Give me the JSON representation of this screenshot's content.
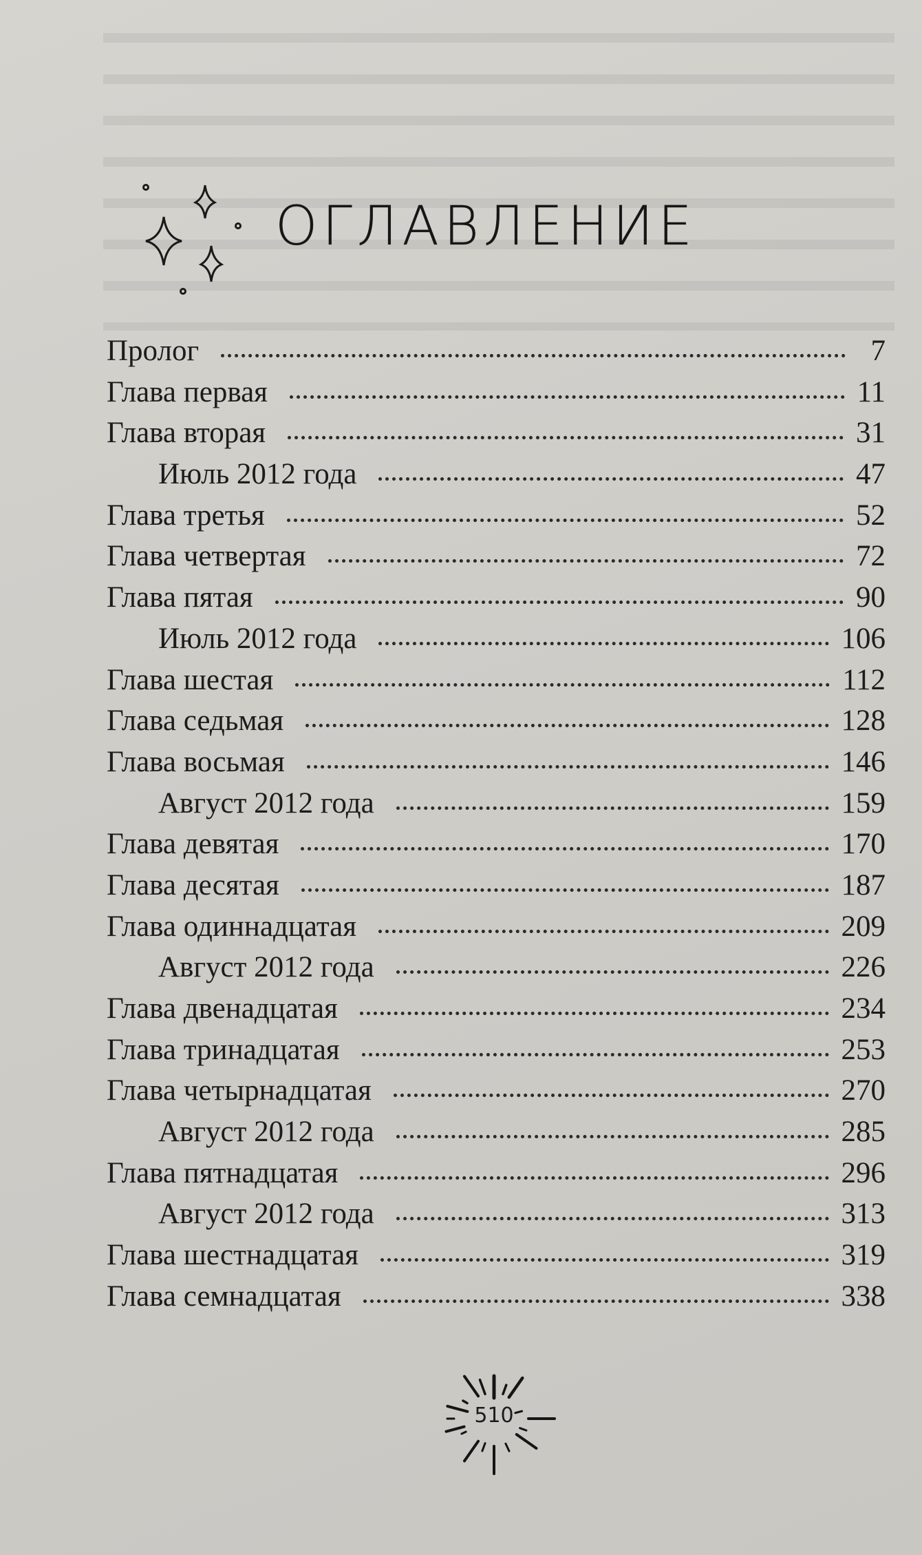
{
  "page_title": "ОГЛАВЛЕНИЕ",
  "decoration_icon": "sparkles-icon",
  "entries": [
    {
      "label": "Пролог",
      "page": "7",
      "sub": false
    },
    {
      "label": "Глава первая",
      "page": "11",
      "sub": false
    },
    {
      "label": "Глава вторая",
      "page": "31",
      "sub": false
    },
    {
      "label": "Июль 2012 года",
      "page": "47",
      "sub": true
    },
    {
      "label": "Глава третья",
      "page": "52",
      "sub": false
    },
    {
      "label": "Глава четвертая",
      "page": "72",
      "sub": false
    },
    {
      "label": "Глава пятая",
      "page": "90",
      "sub": false
    },
    {
      "label": "Июль 2012 года",
      "page": "106",
      "sub": true
    },
    {
      "label": "Глава шестая",
      "page": "112",
      "sub": false
    },
    {
      "label": "Глава седьмая",
      "page": "128",
      "sub": false
    },
    {
      "label": "Глава восьмая",
      "page": "146",
      "sub": false
    },
    {
      "label": "Август 2012 года",
      "page": "159",
      "sub": true
    },
    {
      "label": "Глава девятая",
      "page": "170",
      "sub": false
    },
    {
      "label": "Глава десятая",
      "page": "187",
      "sub": false
    },
    {
      "label": "Глава одиннадцатая",
      "page": "209",
      "sub": false
    },
    {
      "label": "Август 2012 года",
      "page": "226",
      "sub": true
    },
    {
      "label": "Глава двенадцатая",
      "page": "234",
      "sub": false
    },
    {
      "label": "Глава тринадцатая",
      "page": "253",
      "sub": false
    },
    {
      "label": "Глава четырнадцатая",
      "page": "270",
      "sub": false
    },
    {
      "label": "Август 2012 года",
      "page": "285",
      "sub": true
    },
    {
      "label": "Глава пятнадцатая",
      "page": "296",
      "sub": false
    },
    {
      "label": "Август 2012 года",
      "page": "313",
      "sub": true
    },
    {
      "label": "Глава шестнадцатая",
      "page": "319",
      "sub": false
    },
    {
      "label": "Глава семнадцатая",
      "page": "338",
      "sub": false
    }
  ],
  "folio": {
    "number": "510",
    "icon": "sunburst-icon"
  }
}
